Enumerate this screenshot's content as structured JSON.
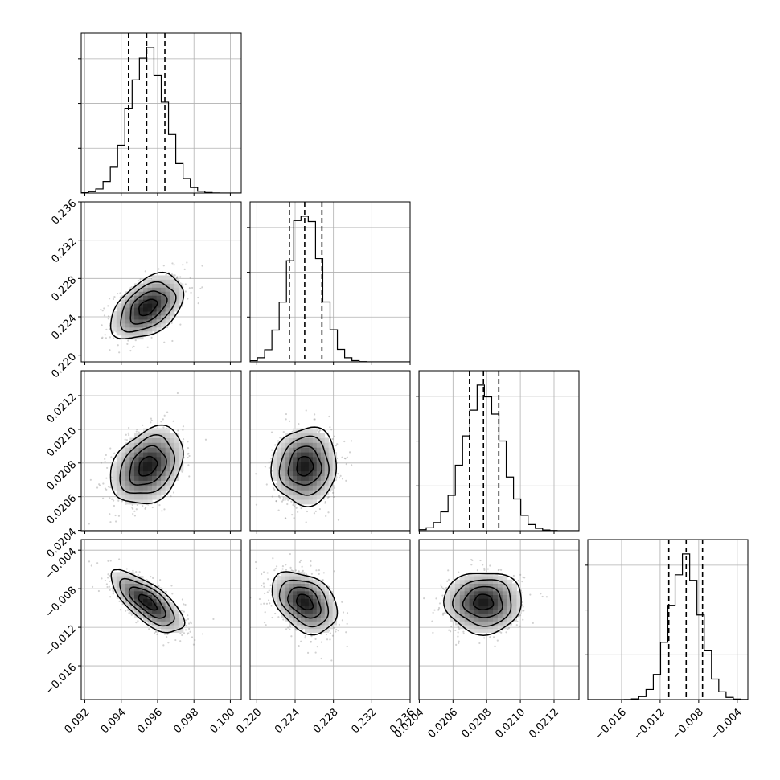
{
  "chart_data": {
    "type": "corner",
    "title": "",
    "parameters": [
      {
        "label": "",
        "mean": 0.09545,
        "sigma": 0.001,
        "quantiles": [
          0.0944,
          0.0954,
          0.0964
        ],
        "range": [
          0.0918,
          0.1006
        ],
        "ticks": [
          0.092,
          0.094,
          0.096,
          0.098,
          0.1
        ],
        "tick_labels": [
          "0.092",
          "0.094",
          "0.096",
          "0.098",
          "0.100"
        ]
      },
      {
        "label": "",
        "mean": 0.225,
        "sigma": 0.0017,
        "quantiles": [
          0.2234,
          0.225,
          0.2268
        ],
        "range": [
          0.2193,
          0.236
        ],
        "ticks": [
          0.22,
          0.224,
          0.228,
          0.232,
          0.236
        ],
        "tick_labels": [
          "0.220",
          "0.224",
          "0.228",
          "0.232",
          "0.236"
        ]
      },
      {
        "label": "",
        "mean": 0.020781,
        "sigma": 0.000115,
        "quantiles": [
          0.020698,
          0.020781,
          0.020872
        ],
        "range": [
          0.020398,
          0.021348
        ],
        "ticks": [
          0.0204,
          0.0206,
          0.0208,
          0.021,
          0.0212
        ],
        "tick_labels": [
          "0.0204",
          "0.0206",
          "0.0208",
          "0.0210",
          "0.0212"
        ]
      },
      {
        "label": "",
        "mean": -0.0094,
        "sigma": 0.0016,
        "quantiles": [
          -0.0111,
          -0.0093,
          -0.0076
        ],
        "range": [
          -0.0195,
          -0.0029
        ],
        "ticks": [
          -0.016,
          -0.012,
          -0.008,
          -0.004
        ],
        "tick_labels": [
          "−0.016",
          "−0.012",
          "−0.008",
          "−0.004"
        ]
      }
    ],
    "correlations": [
      {
        "pair": [
          0,
          1
        ],
        "r": 0.45
      },
      {
        "pair": [
          0,
          2
        ],
        "r": 0.3
      },
      {
        "pair": [
          0,
          3
        ],
        "r": -0.72
      },
      {
        "pair": [
          1,
          2
        ],
        "r": 0.05
      },
      {
        "pair": [
          1,
          3
        ],
        "r": -0.35
      },
      {
        "pair": [
          2,
          3
        ],
        "r": 0.0
      }
    ],
    "contour_levels_sigma": [
      0.5,
      1.0,
      1.5,
      2.0
    ],
    "grid": true
  }
}
